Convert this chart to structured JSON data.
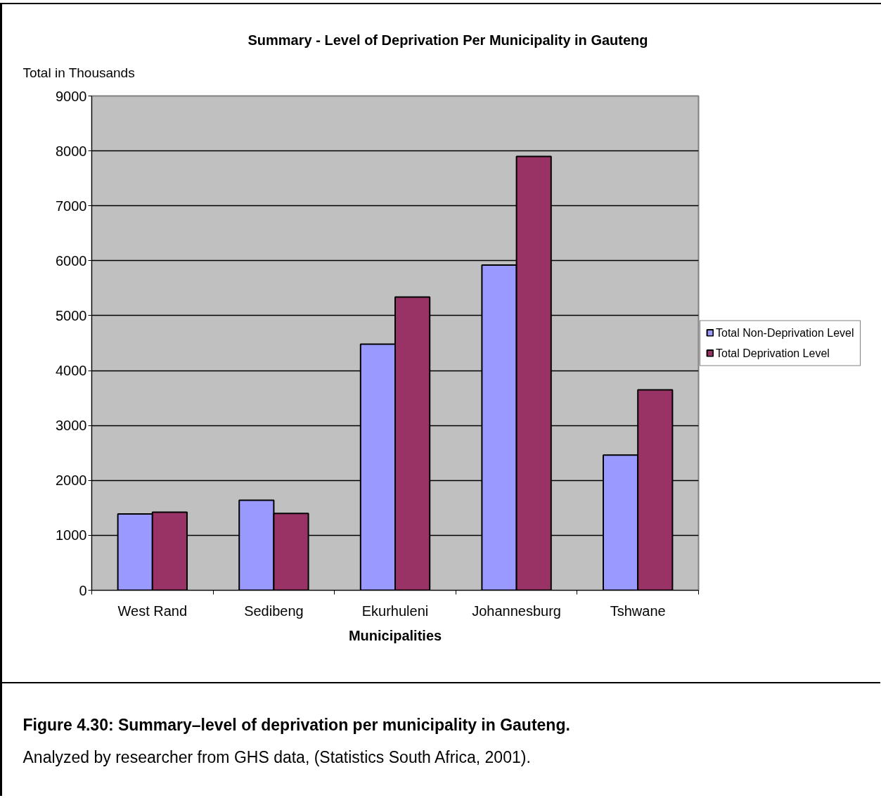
{
  "chart_data": {
    "type": "bar",
    "title": "Summary - Level of Deprivation Per Municipality in Gauteng",
    "xlabel": "Municipalities",
    "ylabel": "Total in Thousands",
    "categories": [
      "West Rand",
      "Sedibeng",
      "Ekurhuleni",
      "Johannesburg",
      "Tshwane"
    ],
    "series": [
      {
        "name": "Total Non-Deprivation Level",
        "color": "#9999ff",
        "values": [
          1390,
          1640,
          4480,
          5920,
          2460
        ]
      },
      {
        "name": "Total Deprivation Level",
        "color": "#993366",
        "values": [
          1420,
          1400,
          5340,
          7900,
          3650
        ]
      }
    ],
    "ylim": [
      0,
      9000
    ],
    "yticks": [
      0,
      1000,
      2000,
      3000,
      4000,
      5000,
      6000,
      7000,
      8000,
      9000
    ],
    "grid": "y",
    "legend": "right",
    "annotations": [
      "Figure 4.30: Summary–level of deprivation per municipality in Gauteng.",
      "Analyzed by researcher from GHS data, (Statistics South Africa, 2001)."
    ]
  }
}
